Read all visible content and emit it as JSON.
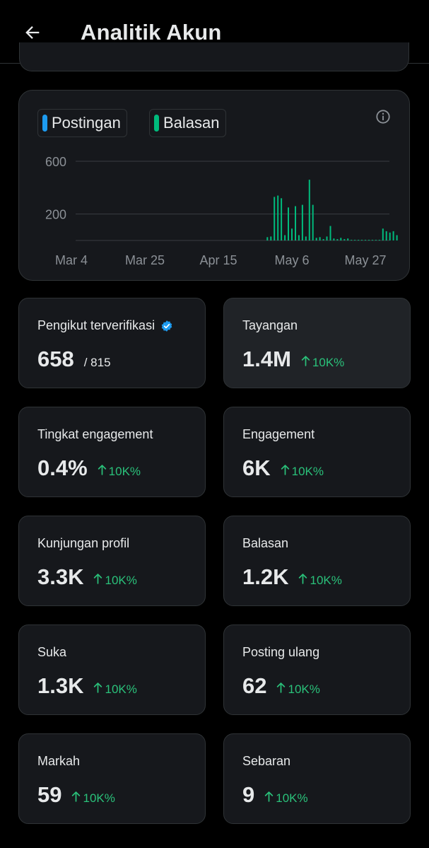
{
  "header": {
    "title": "Analitik Akun"
  },
  "chart": {
    "legend": [
      {
        "label": "Postingan",
        "color": "#1d9bf0"
      },
      {
        "label": "Balasan",
        "color": "#00ba7c"
      }
    ]
  },
  "chart_data": {
    "type": "bar",
    "x_ticks": [
      "Mar 4",
      "Mar 25",
      "Apr 15",
      "May 6",
      "May 27"
    ],
    "y_ticks": [
      "600",
      "200"
    ],
    "ylim": [
      0,
      600
    ],
    "grid": true,
    "series": [
      {
        "name": "Balasan",
        "color": "#00ba7c",
        "x": [
          "Apr 29",
          "Apr 30",
          "May 1",
          "May 2",
          "May 3",
          "May 4",
          "May 5",
          "May 6",
          "May 7",
          "May 8",
          "May 9",
          "May 10",
          "May 11",
          "May 12",
          "May 13",
          "May 14",
          "May 15",
          "May 16",
          "May 17",
          "May 18",
          "May 19",
          "May 20",
          "May 21",
          "May 22",
          "May 23",
          "May 24",
          "May 25",
          "May 26",
          "May 27",
          "May 28",
          "May 29",
          "May 30",
          "May 31",
          "Jun 1",
          "Jun 2",
          "Jun 3",
          "Jun 4",
          "Jun 5"
        ],
        "values": [
          25,
          30,
          330,
          340,
          320,
          40,
          250,
          90,
          260,
          40,
          270,
          30,
          460,
          270,
          20,
          25,
          10,
          30,
          110,
          15,
          10,
          20,
          10,
          15,
          5,
          5,
          5,
          5,
          5,
          5,
          5,
          5,
          5,
          90,
          70,
          60,
          70,
          40
        ]
      }
    ]
  },
  "stats": [
    {
      "label": "Pengikut terverifikasi",
      "value": "658",
      "total": "/ 815",
      "verified": true
    },
    {
      "label": "Tayangan",
      "value": "1.4M",
      "delta": "10K%"
    },
    {
      "label": "Tingkat engagement",
      "value": "0.4%",
      "delta": "10K%"
    },
    {
      "label": "Engagement",
      "value": "6K",
      "delta": "10K%"
    },
    {
      "label": "Kunjungan profil",
      "value": "3.3K",
      "delta": "10K%"
    },
    {
      "label": "Balasan",
      "value": "1.2K",
      "delta": "10K%"
    },
    {
      "label": "Suka",
      "value": "1.3K",
      "delta": "10K%"
    },
    {
      "label": "Posting ulang",
      "value": "62",
      "delta": "10K%"
    },
    {
      "label": "Markah",
      "value": "59",
      "delta": "10K%"
    },
    {
      "label": "Sebaran",
      "value": "9",
      "delta": "10K%"
    }
  ],
  "icons": {
    "back": "arrow-left-icon",
    "info": "info-icon",
    "verified": "verified-badge-icon",
    "delta": "arrow-up-icon"
  }
}
